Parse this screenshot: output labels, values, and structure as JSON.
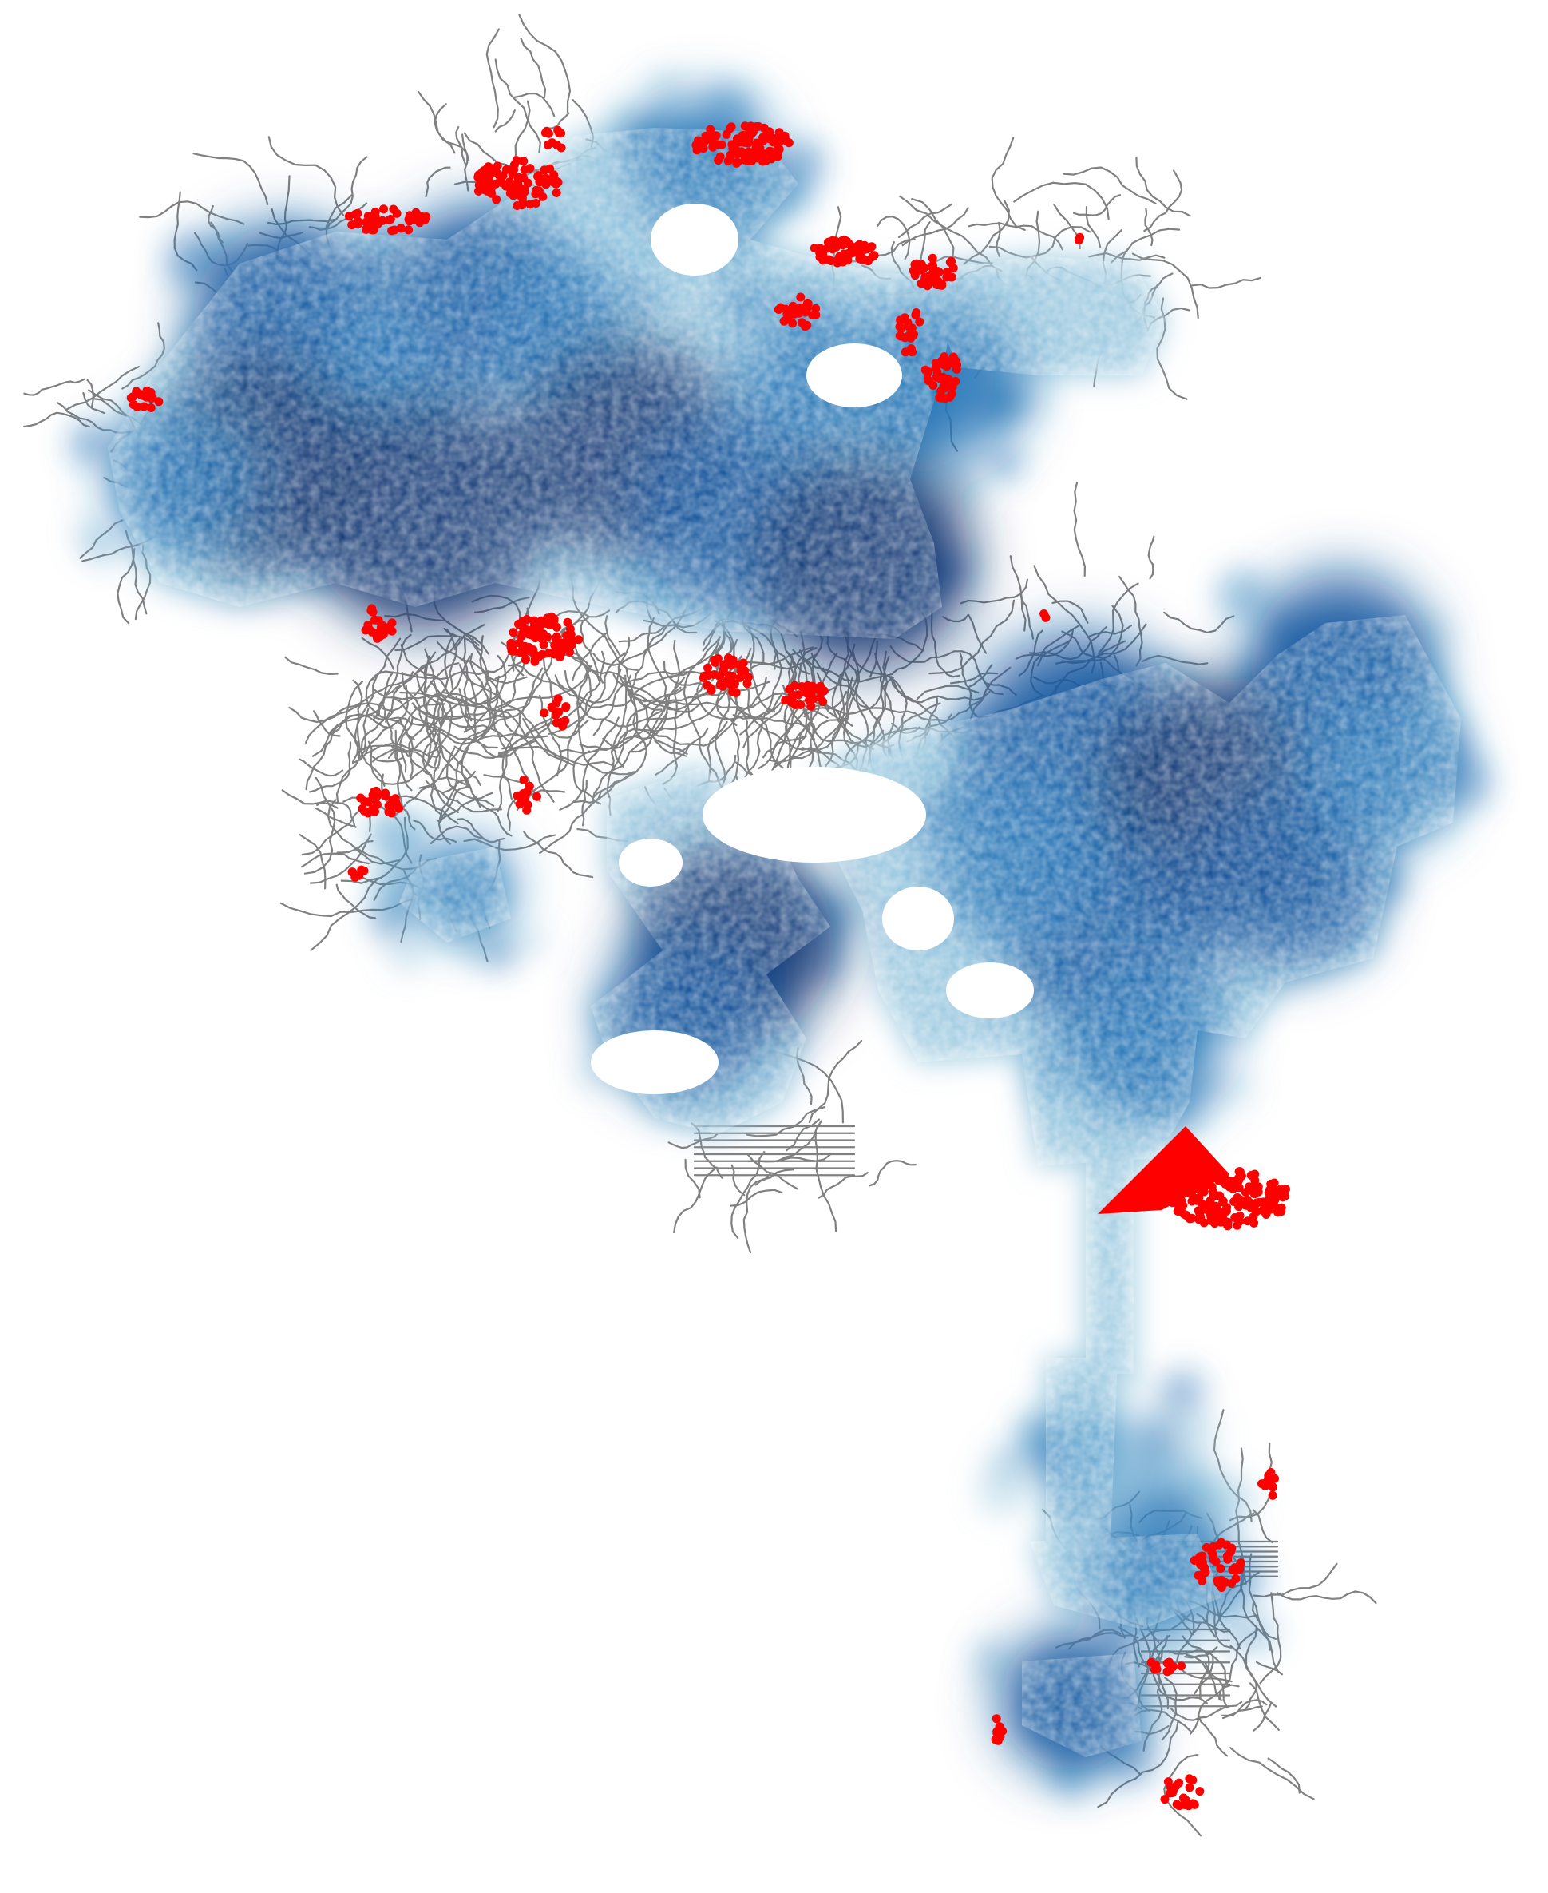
{
  "map": {
    "title": "",
    "description_visible": false,
    "layers": [
      {
        "id": "street-network",
        "kind": "lines",
        "color": "#808080"
      },
      {
        "id": "density-surface",
        "kind": "heat-points",
        "color_ramp": [
          "#dbe9f6",
          "#9ecae1",
          "#4292c6",
          "#2171b5",
          "#08519c",
          "#08306b"
        ]
      },
      {
        "id": "highlighted-points",
        "kind": "points",
        "color": "#ff0000"
      }
    ],
    "background": "#ffffff"
  }
}
